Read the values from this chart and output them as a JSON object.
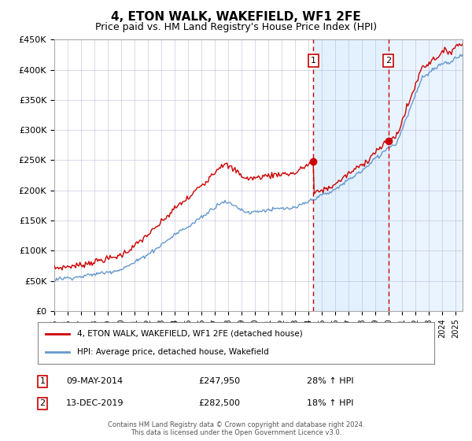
{
  "title": "4, ETON WALK, WAKEFIELD, WF1 2FE",
  "subtitle": "Price paid vs. HM Land Registry's House Price Index (HPI)",
  "title_fontsize": 11,
  "subtitle_fontsize": 9,
  "ylabel_ticks": [
    "£0",
    "£50K",
    "£100K",
    "£150K",
    "£200K",
    "£250K",
    "£300K",
    "£350K",
    "£400K",
    "£450K"
  ],
  "ylabel_values": [
    0,
    50000,
    100000,
    150000,
    200000,
    250000,
    300000,
    350000,
    400000,
    450000
  ],
  "ylim": [
    0,
    450000
  ],
  "xlim_start": 1995.0,
  "xlim_end": 2025.5,
  "purchase1_date": 2014.35,
  "purchase1_price": 247950,
  "purchase1_label": "1",
  "purchase2_date": 2019.95,
  "purchase2_price": 282500,
  "purchase2_label": "2",
  "red_line_color": "#cc0000",
  "blue_line_color": "#6699cc",
  "shade_color": "#ddeeff",
  "dot_color": "#cc0000",
  "vline_color": "#cc0000",
  "grid_color": "#aaaacc",
  "background_color": "#ffffff",
  "legend1_label": "4, ETON WALK, WAKEFIELD, WF1 2FE (detached house)",
  "legend2_label": "HPI: Average price, detached house, Wakefield",
  "footer": "Contains HM Land Registry data © Crown copyright and database right 2024.\nThis data is licensed under the Open Government Licence v3.0.",
  "ann1_date": "09-MAY-2014",
  "ann1_price": "£247,950",
  "ann1_hpi": "28% ↑ HPI",
  "ann2_date": "13-DEC-2019",
  "ann2_price": "£282,500",
  "ann2_hpi": "18% ↑ HPI"
}
